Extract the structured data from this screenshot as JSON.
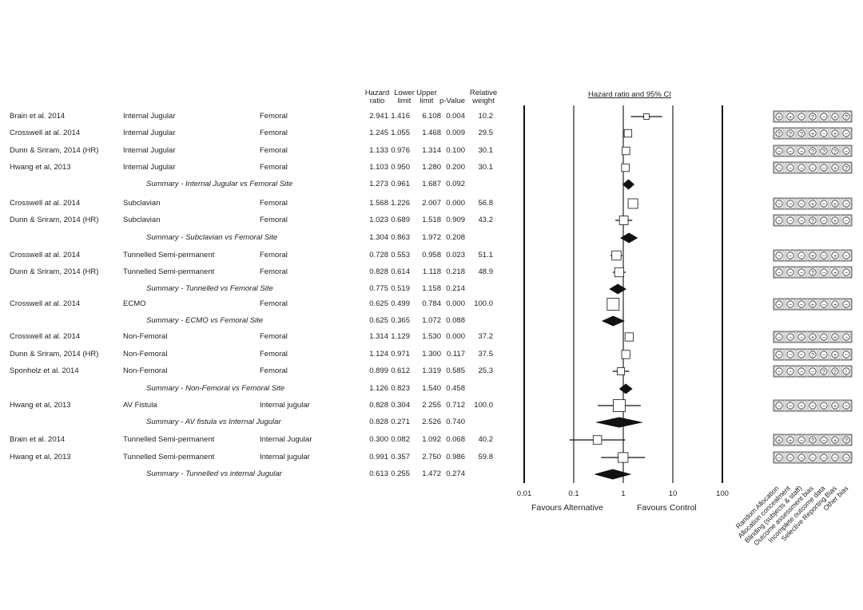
{
  "headers": {
    "hr": [
      "Hazard",
      "ratio"
    ],
    "lower": [
      "Lower",
      "limit"
    ],
    "upper": [
      "Upper",
      "limit"
    ],
    "p": "p-Value",
    "weight": [
      "Relative",
      "weight"
    ],
    "plot_title": "Hazard ratio and 95% CI"
  },
  "chart_data": {
    "type": "forest",
    "x_scale": "log",
    "xlim": [
      0.01,
      100
    ],
    "x_ticks": [
      "0.01",
      "0.1",
      "1",
      "10",
      "100"
    ],
    "left_label": "Favours Alternative",
    "right_label": "Favours Control",
    "rob_domains": [
      "Random Allocation",
      "Allocation concealment",
      "Blinding (subjects & staff)",
      "Outcome assessment bias",
      "Incomplete outcome data",
      "Selective Reporting Bias",
      "Other bias"
    ],
    "rows": [
      {
        "study": "Brain et al. 2014",
        "comp": "Internal Jugular",
        "ref": "Femoral",
        "hr": "2.941",
        "lo": "1.416",
        "hi": "6.108",
        "p": "0.004",
        "w": "10.2",
        "summary": false,
        "rob": [
          "+",
          "+",
          "-",
          "?",
          "-",
          "+",
          "?"
        ]
      },
      {
        "study": "Crosswell at al. 2014",
        "comp": "Internal Jugular",
        "ref": "Femoral",
        "hr": "1.245",
        "lo": "1.055",
        "hi": "1.468",
        "p": "0.009",
        "w": "29.5",
        "summary": false,
        "rob": [
          "?",
          "?",
          "?",
          "+",
          "-",
          "+",
          "-"
        ]
      },
      {
        "study": "Dunn & Sriram, 2014 (HR)",
        "comp": "Internal Jugular",
        "ref": "Femoral",
        "hr": "1.133",
        "lo": "0.976",
        "hi": "1.314",
        "p": "0.100",
        "w": "30.1",
        "summary": false,
        "rob": [
          "-",
          "-",
          "-",
          "?",
          "?",
          "?",
          "-"
        ]
      },
      {
        "study": "Hwang et al, 2013",
        "comp": "Internal Jugular",
        "ref": "Femoral",
        "hr": "1.103",
        "lo": "0.950",
        "hi": "1.280",
        "p": "0.200",
        "w": "30.1",
        "summary": false,
        "rob": [
          "-",
          "-",
          "-",
          "-",
          "-",
          "+",
          "?"
        ]
      },
      {
        "study": "",
        "comp": "Summary - Internal Jugular vs Femoral Site",
        "ref": "",
        "hr": "1.273",
        "lo": "0.961",
        "hi": "1.687",
        "p": "0.092",
        "w": "",
        "summary": true,
        "rob": []
      },
      {
        "study": "Crosswell at al. 2014",
        "comp": "Subclavian",
        "ref": "Femoral",
        "hr": "1.568",
        "lo": "1.226",
        "hi": "2.007",
        "p": "0.000",
        "w": "56.8",
        "summary": false,
        "rob": [
          "-",
          "-",
          "-",
          "+",
          "-",
          "+",
          "-"
        ]
      },
      {
        "study": "Dunn & Sriram, 2014 (HR)",
        "comp": "Subclavian",
        "ref": "Femoral",
        "hr": "1.023",
        "lo": "0.689",
        "hi": "1.518",
        "p": "0.909",
        "w": "43.2",
        "summary": false,
        "rob": [
          "-",
          "-",
          "-",
          "?",
          "-",
          "+",
          "-"
        ]
      },
      {
        "study": "",
        "comp": "Summary - Subclavian vs Femoral Site",
        "ref": "",
        "hr": "1.304",
        "lo": "0.863",
        "hi": "1.972",
        "p": "0.208",
        "w": "",
        "summary": true,
        "rob": []
      },
      {
        "study": "Crosswell at al. 2014",
        "comp": "Tunnelled Semi-permanent",
        "ref": "Femoral",
        "hr": "0.728",
        "lo": "0.553",
        "hi": "0.958",
        "p": "0.023",
        "w": "51.1",
        "summary": false,
        "rob": [
          "-",
          "-",
          "-",
          "+",
          "-",
          "+",
          "-"
        ]
      },
      {
        "study": "Dunn & Sriram, 2014 (HR)",
        "comp": "Tunnelled Semi-permanent",
        "ref": "Femoral",
        "hr": "0.828",
        "lo": "0.614",
        "hi": "1.118",
        "p": "0.218",
        "w": "48.9",
        "summary": false,
        "rob": [
          "-",
          "-",
          "-",
          "?",
          "-",
          "+",
          "-"
        ]
      },
      {
        "study": "",
        "comp": "Summary - Tunnelled vs Femoral Site",
        "ref": "",
        "hr": "0.775",
        "lo": "0.519",
        "hi": "1.158",
        "p": "0.214",
        "w": "",
        "summary": true,
        "rob": []
      },
      {
        "study": "Crosswell at al. 2014",
        "comp": "ECMO",
        "ref": "Femoral",
        "hr": "0.625",
        "lo": "0.499",
        "hi": "0.784",
        "p": "0.000",
        "w": "100.0",
        "summary": false,
        "rob": [
          "-",
          "-",
          "-",
          "+",
          "-",
          "+",
          "-"
        ]
      },
      {
        "study": "",
        "comp": "Summary - ECMO vs Femoral Site",
        "ref": "",
        "hr": "0.625",
        "lo": "0.365",
        "hi": "1.072",
        "p": "0.088",
        "w": "",
        "summary": true,
        "rob": []
      },
      {
        "study": "Crosswell at al. 2014",
        "comp": "Non-Femoral",
        "ref": "Femoral",
        "hr": "1.314",
        "lo": "1.129",
        "hi": "1.530",
        "p": "0.000",
        "w": "37.2",
        "summary": false,
        "rob": [
          "-",
          "-",
          "-",
          "+",
          "-",
          "+",
          "-"
        ]
      },
      {
        "study": "Dunn & Sriram, 2014 (HR)",
        "comp": "Non-Femoral",
        "ref": "Femoral",
        "hr": "1.124",
        "lo": "0.971",
        "hi": "1.300",
        "p": "0.117",
        "w": "37.5",
        "summary": false,
        "rob": [
          "-",
          "-",
          "-",
          "?",
          "-",
          "+",
          "-"
        ]
      },
      {
        "study": "Sponholz et al. 2014",
        "comp": "Non-Femoral",
        "ref": "Femoral",
        "hr": "0.899",
        "lo": "0.612",
        "hi": "1.319",
        "p": "0.585",
        "w": "25.3",
        "summary": false,
        "rob": [
          "-",
          "-",
          "-",
          "-",
          "?",
          "?",
          "!"
        ]
      },
      {
        "study": "",
        "comp": "Summary - Non-Femoral vs Femoral Site",
        "ref": "",
        "hr": "1.126",
        "lo": "0.823",
        "hi": "1.540",
        "p": "0.458",
        "w": "",
        "summary": true,
        "rob": []
      },
      {
        "study": "Hwang et al, 2013",
        "comp": "AV Fistula",
        "ref": "Internal jugular",
        "hr": "0.828",
        "lo": "0.304",
        "hi": "2.255",
        "p": "0.712",
        "w": "100.0",
        "summary": false,
        "rob": [
          "-",
          "-",
          "-",
          "-",
          "-",
          "+",
          "-"
        ]
      },
      {
        "study": "",
        "comp": "Summary - AV fistula vs Internal Jugular",
        "ref": "",
        "hr": "0.828",
        "lo": "0.271",
        "hi": "2.526",
        "p": "0.740",
        "w": "",
        "summary": true,
        "rob": []
      },
      {
        "study": "Brain et al. 2014",
        "comp": "Tunnelled Semi-permanent",
        "ref": "Internal Jugular",
        "hr": "0.300",
        "lo": "0.082",
        "hi": "1.092",
        "p": "0.068",
        "w": "40.2",
        "summary": false,
        "rob": [
          "+",
          "+",
          "-",
          "?",
          "-",
          "+",
          "?"
        ]
      },
      {
        "study": "Hwang et al, 2013",
        "comp": "Tunnelled Semi-permanent",
        "ref": "Internal jugular",
        "hr": "0.991",
        "lo": "0.357",
        "hi": "2.750",
        "p": "0.986",
        "w": "59.8",
        "summary": false,
        "rob": [
          "-",
          "-",
          "-",
          "-",
          "-",
          "-",
          "-"
        ]
      },
      {
        "study": "",
        "comp": "Summary - Tunnelled vs internal Jugular",
        "ref": "",
        "hr": "0.613",
        "lo": "0.255",
        "hi": "1.472",
        "p": "0.274",
        "w": "",
        "summary": true,
        "rob": []
      }
    ]
  }
}
